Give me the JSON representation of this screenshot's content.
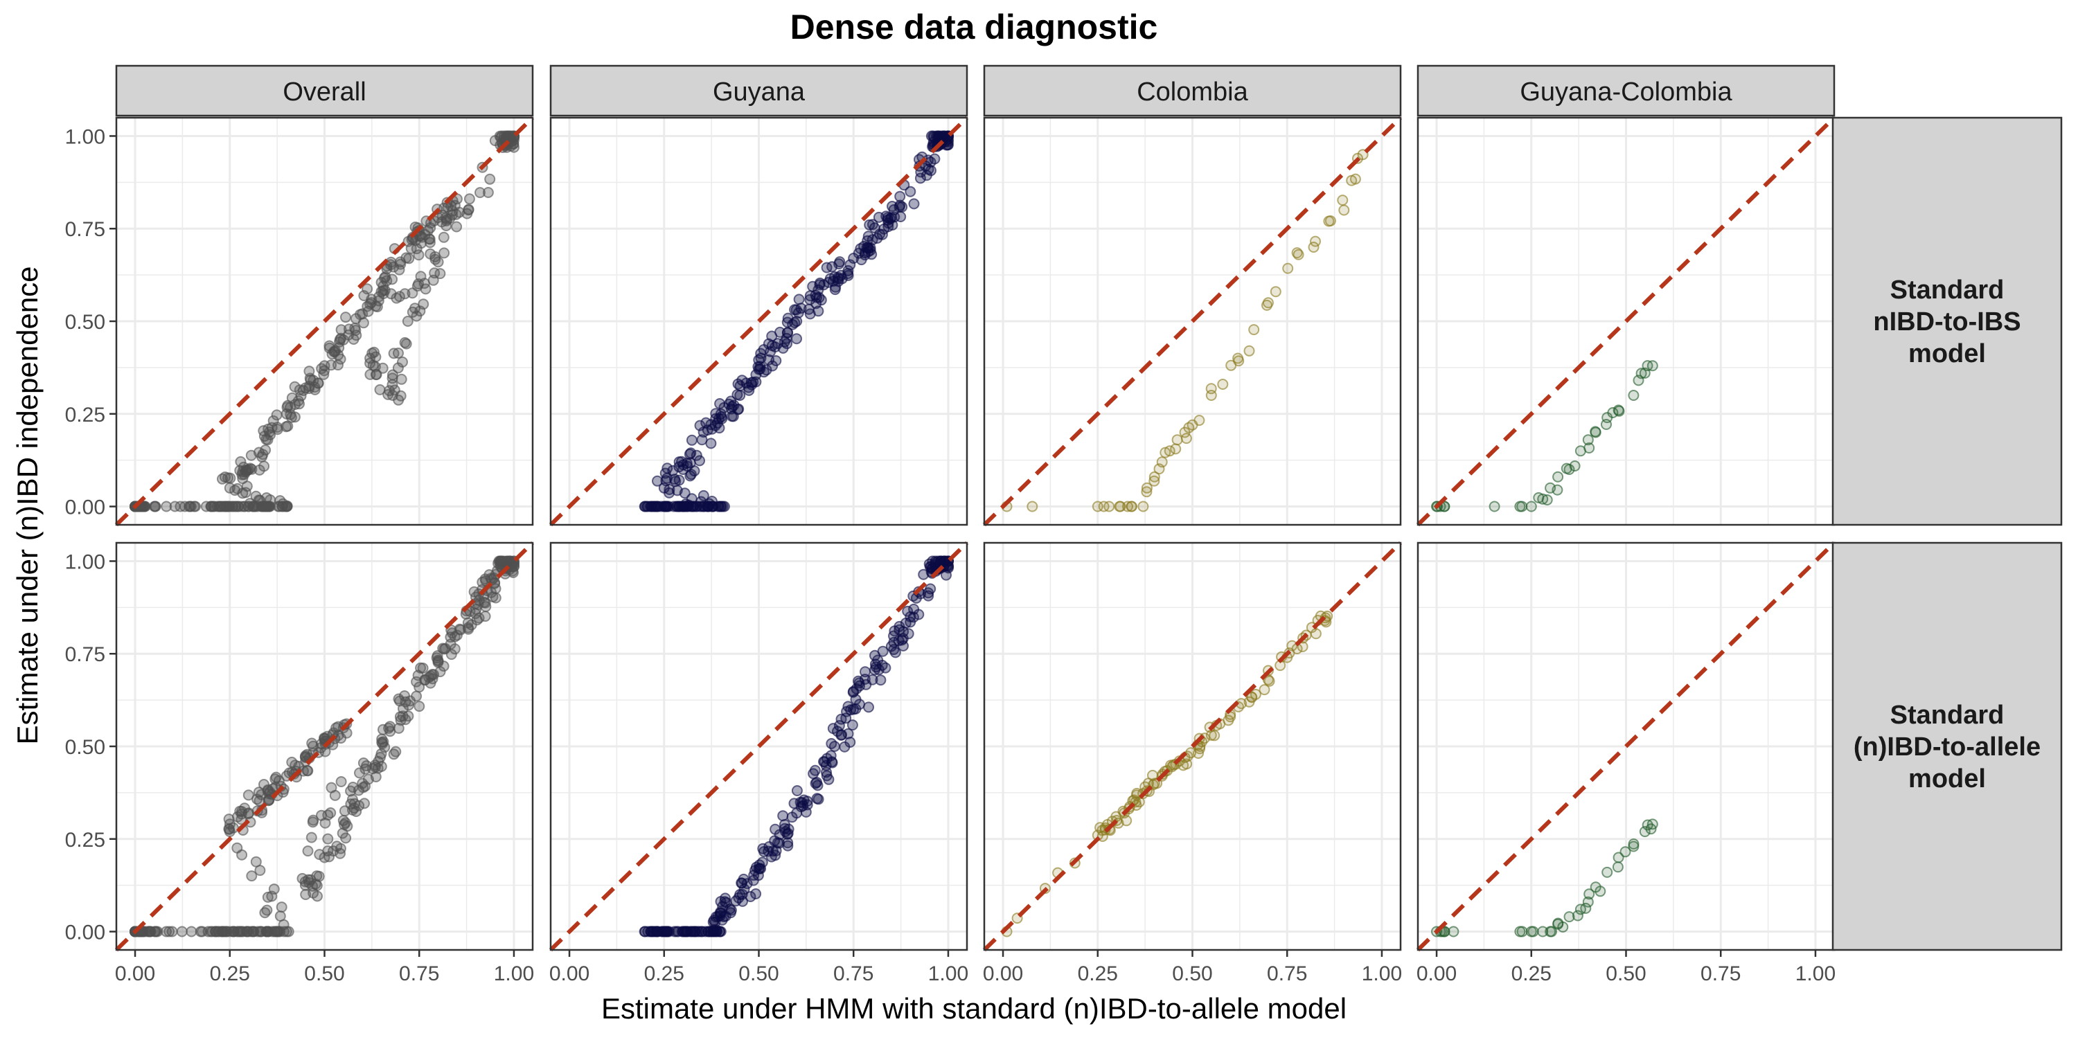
{
  "chart_data": {
    "type": "scatter",
    "title": "Dense data diagnostic",
    "xlabel": "Estimate under HMM with standard (n)IBD-to-allele model",
    "ylabel": "Estimate under (n)IBD independence",
    "xlim": [
      0,
      1
    ],
    "ylim": [
      0,
      1
    ],
    "x_ticks": [
      "0.00",
      "0.25",
      "0.50",
      "0.75",
      "1.00"
    ],
    "y_ticks": [
      "0.00",
      "0.25",
      "0.50",
      "0.75",
      "1.00"
    ],
    "grid": true,
    "reference_line": {
      "type": "identity",
      "style": "dashed",
      "color": "#b5361a"
    },
    "column_facets": [
      "Overall",
      "Guyana",
      "Colombia",
      "Guyana-Colombia"
    ],
    "row_facets": [
      "Standard\nnIBD-to-IBS\nmodel",
      "Standard\n(n)IBD-to-allele\nmodel"
    ],
    "colors": {
      "Overall": "#505050",
      "Guyana": "#0b0b45",
      "Colombia": "#8a7a1e",
      "Guyana-Colombia": "#1f5a28",
      "strip_fill": "#d3d3d3",
      "grid": "#ebebeb"
    },
    "panels": [
      {
        "row": 0,
        "col": 0,
        "facet": "Overall",
        "density": "very high",
        "points": [
          [
            0.0,
            0.0
          ],
          [
            0.01,
            0.0
          ],
          [
            0.02,
            0.0
          ],
          [
            0.2,
            0.0
          ],
          [
            0.25,
            0.0
          ],
          [
            0.3,
            0.0
          ],
          [
            0.35,
            0.0
          ],
          [
            0.4,
            0.0
          ],
          [
            0.25,
            0.05
          ],
          [
            0.3,
            0.1
          ],
          [
            0.35,
            0.18
          ],
          [
            0.4,
            0.25
          ],
          [
            0.45,
            0.32
          ],
          [
            0.5,
            0.38
          ],
          [
            0.55,
            0.45
          ],
          [
            0.6,
            0.52
          ],
          [
            0.65,
            0.58
          ],
          [
            0.7,
            0.66
          ],
          [
            0.75,
            0.73
          ],
          [
            0.8,
            0.78
          ],
          [
            0.85,
            0.83
          ],
          [
            0.62,
            0.4
          ],
          [
            0.68,
            0.3
          ],
          [
            0.72,
            0.5
          ],
          [
            0.8,
            0.66
          ],
          [
            0.97,
            0.98
          ],
          [
            0.98,
            0.99
          ],
          [
            0.99,
            1.0
          ]
        ]
      },
      {
        "row": 0,
        "col": 1,
        "facet": "Guyana",
        "density": "very high",
        "points": [
          [
            0.2,
            0.0
          ],
          [
            0.25,
            0.0
          ],
          [
            0.3,
            0.0
          ],
          [
            0.35,
            0.0
          ],
          [
            0.4,
            0.0
          ],
          [
            0.25,
            0.05
          ],
          [
            0.3,
            0.1
          ],
          [
            0.35,
            0.18
          ],
          [
            0.4,
            0.25
          ],
          [
            0.45,
            0.3
          ],
          [
            0.5,
            0.37
          ],
          [
            0.55,
            0.44
          ],
          [
            0.6,
            0.5
          ],
          [
            0.65,
            0.57
          ],
          [
            0.7,
            0.62
          ],
          [
            0.75,
            0.67
          ],
          [
            0.8,
            0.72
          ],
          [
            0.85,
            0.78
          ],
          [
            0.9,
            0.85
          ],
          [
            0.97,
            0.98
          ],
          [
            0.98,
            0.99
          ],
          [
            0.99,
            1.0
          ]
        ]
      },
      {
        "row": 0,
        "col": 2,
        "facet": "Colombia",
        "density": "sparse",
        "points": [
          [
            0.01,
            0.0
          ],
          [
            0.25,
            0.0
          ],
          [
            0.28,
            0.0
          ],
          [
            0.31,
            0.0
          ],
          [
            0.34,
            0.0
          ],
          [
            0.37,
            0.0
          ],
          [
            0.38,
            0.05
          ],
          [
            0.4,
            0.08
          ],
          [
            0.42,
            0.12
          ],
          [
            0.44,
            0.15
          ],
          [
            0.46,
            0.18
          ],
          [
            0.48,
            0.2
          ],
          [
            0.5,
            0.22
          ],
          [
            0.55,
            0.3
          ],
          [
            0.58,
            0.33
          ],
          [
            0.62,
            0.4
          ],
          [
            0.65,
            0.42
          ],
          [
            0.7,
            0.55
          ],
          [
            0.72,
            0.58
          ],
          [
            0.78,
            0.68
          ],
          [
            0.82,
            0.7
          ],
          [
            0.86,
            0.77
          ],
          [
            0.9,
            0.8
          ],
          [
            0.92,
            0.88
          ],
          [
            0.95,
            0.95
          ]
        ]
      },
      {
        "row": 0,
        "col": 3,
        "facet": "Guyana-Colombia",
        "density": "sparse",
        "points": [
          [
            0.0,
            0.0
          ],
          [
            0.01,
            0.0
          ],
          [
            0.02,
            0.0
          ],
          [
            0.22,
            0.0
          ],
          [
            0.25,
            0.0
          ],
          [
            0.28,
            0.02
          ],
          [
            0.3,
            0.05
          ],
          [
            0.32,
            0.08
          ],
          [
            0.35,
            0.1
          ],
          [
            0.38,
            0.15
          ],
          [
            0.4,
            0.18
          ],
          [
            0.42,
            0.2
          ],
          [
            0.45,
            0.24
          ],
          [
            0.48,
            0.26
          ],
          [
            0.52,
            0.3
          ],
          [
            0.55,
            0.36
          ],
          [
            0.57,
            0.38
          ]
        ]
      },
      {
        "row": 1,
        "col": 0,
        "facet": "Overall",
        "density": "very high",
        "points": [
          [
            0.0,
            0.0
          ],
          [
            0.01,
            0.0
          ],
          [
            0.02,
            0.0
          ],
          [
            0.2,
            0.0
          ],
          [
            0.25,
            0.0
          ],
          [
            0.3,
            0.0
          ],
          [
            0.35,
            0.0
          ],
          [
            0.4,
            0.0
          ],
          [
            0.25,
            0.27
          ],
          [
            0.3,
            0.32
          ],
          [
            0.35,
            0.38
          ],
          [
            0.4,
            0.42
          ],
          [
            0.45,
            0.47
          ],
          [
            0.5,
            0.52
          ],
          [
            0.55,
            0.55
          ],
          [
            0.45,
            0.1
          ],
          [
            0.5,
            0.2
          ],
          [
            0.55,
            0.3
          ],
          [
            0.6,
            0.4
          ],
          [
            0.65,
            0.48
          ],
          [
            0.7,
            0.58
          ],
          [
            0.75,
            0.66
          ],
          [
            0.8,
            0.73
          ],
          [
            0.85,
            0.8
          ],
          [
            0.9,
            0.87
          ],
          [
            0.93,
            0.92
          ],
          [
            0.97,
            0.98
          ],
          [
            0.98,
            0.99
          ],
          [
            0.99,
            1.0
          ]
        ]
      },
      {
        "row": 1,
        "col": 1,
        "facet": "Guyana",
        "density": "very high",
        "points": [
          [
            0.2,
            0.0
          ],
          [
            0.25,
            0.0
          ],
          [
            0.3,
            0.0
          ],
          [
            0.35,
            0.0
          ],
          [
            0.4,
            0.0
          ],
          [
            0.4,
            0.05
          ],
          [
            0.45,
            0.1
          ],
          [
            0.5,
            0.17
          ],
          [
            0.55,
            0.24
          ],
          [
            0.6,
            0.32
          ],
          [
            0.65,
            0.4
          ],
          [
            0.7,
            0.5
          ],
          [
            0.75,
            0.6
          ],
          [
            0.8,
            0.68
          ],
          [
            0.85,
            0.77
          ],
          [
            0.9,
            0.85
          ],
          [
            0.97,
            0.98
          ],
          [
            0.98,
            0.99
          ],
          [
            0.99,
            1.0
          ]
        ]
      },
      {
        "row": 1,
        "col": 2,
        "facet": "Colombia",
        "density": "moderate",
        "points": [
          [
            0.01,
            0.0
          ],
          [
            0.25,
            0.26
          ],
          [
            0.27,
            0.28
          ],
          [
            0.3,
            0.3
          ],
          [
            0.32,
            0.32
          ],
          [
            0.35,
            0.35
          ],
          [
            0.38,
            0.38
          ],
          [
            0.4,
            0.4
          ],
          [
            0.42,
            0.42
          ],
          [
            0.45,
            0.45
          ],
          [
            0.48,
            0.47
          ],
          [
            0.52,
            0.5
          ],
          [
            0.55,
            0.53
          ],
          [
            0.6,
            0.58
          ],
          [
            0.65,
            0.62
          ],
          [
            0.7,
            0.68
          ],
          [
            0.75,
            0.74
          ],
          [
            0.8,
            0.8
          ],
          [
            0.85,
            0.84
          ]
        ]
      },
      {
        "row": 1,
        "col": 3,
        "facet": "Guyana-Colombia",
        "density": "sparse",
        "points": [
          [
            0.0,
            0.0
          ],
          [
            0.01,
            0.0
          ],
          [
            0.02,
            0.0
          ],
          [
            0.22,
            0.0
          ],
          [
            0.25,
            0.0
          ],
          [
            0.28,
            0.0
          ],
          [
            0.3,
            0.0
          ],
          [
            0.32,
            0.02
          ],
          [
            0.35,
            0.04
          ],
          [
            0.38,
            0.06
          ],
          [
            0.4,
            0.08
          ],
          [
            0.42,
            0.12
          ],
          [
            0.45,
            0.16
          ],
          [
            0.48,
            0.2
          ],
          [
            0.52,
            0.23
          ],
          [
            0.55,
            0.27
          ],
          [
            0.57,
            0.29
          ]
        ]
      }
    ]
  }
}
